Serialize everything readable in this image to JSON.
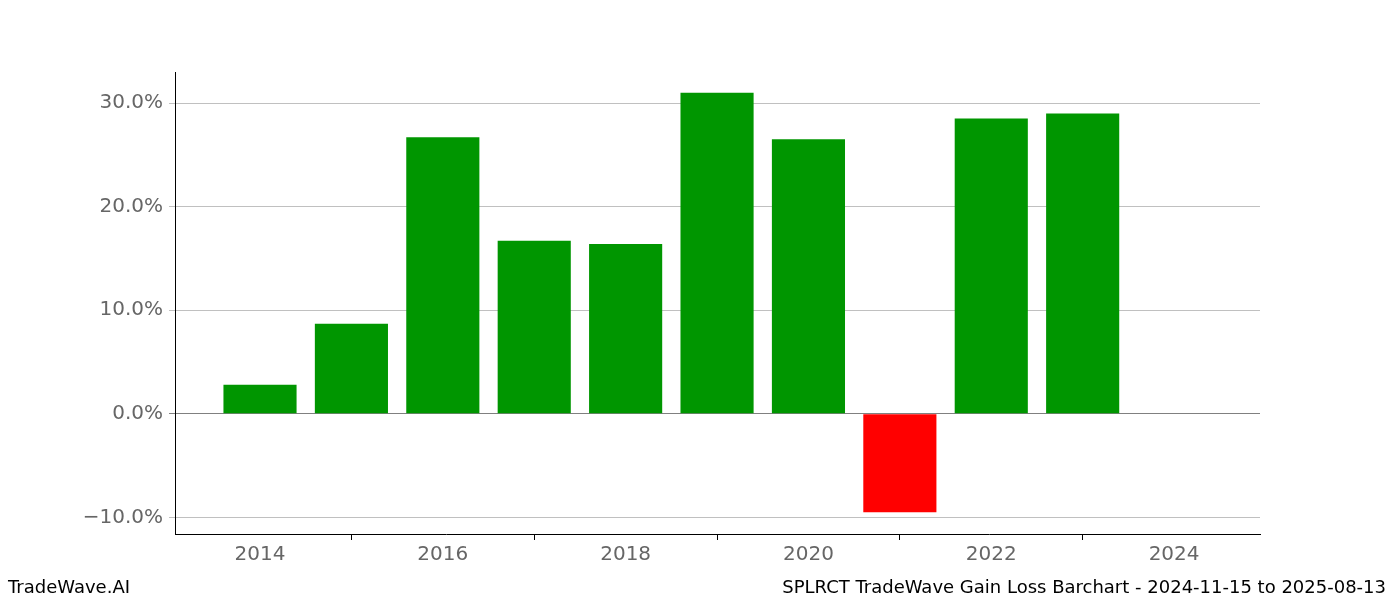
{
  "chart_data": {
    "type": "bar",
    "annotations": [
      "TradeWave.AI",
      "SPLRCT TradeWave Gain Loss Barchart - 2024-11-15 to 2025-08-13"
    ],
    "x": [
      2014,
      2015,
      2016,
      2017,
      2018,
      2019,
      2020,
      2021,
      2022,
      2023
    ],
    "values": [
      2.8,
      8.7,
      26.7,
      16.7,
      16.4,
      31.0,
      26.5,
      -9.5,
      28.5,
      29.0
    ],
    "colors": [
      "#009600",
      "#009600",
      "#009600",
      "#009600",
      "#009600",
      "#009600",
      "#009600",
      "#ff0000",
      "#009600",
      "#009600"
    ],
    "xlim": [
      2013.07,
      2024.94
    ],
    "xticks": [
      2014,
      2016,
      2018,
      2020,
      2022,
      2024
    ],
    "ylim": [
      -11.6,
      33.0
    ],
    "yticks": [
      {
        "value": -10,
        "label": "−10.0%"
      },
      {
        "value": 0,
        "label": "0.0%"
      },
      {
        "value": 10,
        "label": "10.0%"
      },
      {
        "value": 20,
        "label": "20.0%"
      },
      {
        "value": 30,
        "label": "30.0%"
      }
    ],
    "grid": true
  }
}
